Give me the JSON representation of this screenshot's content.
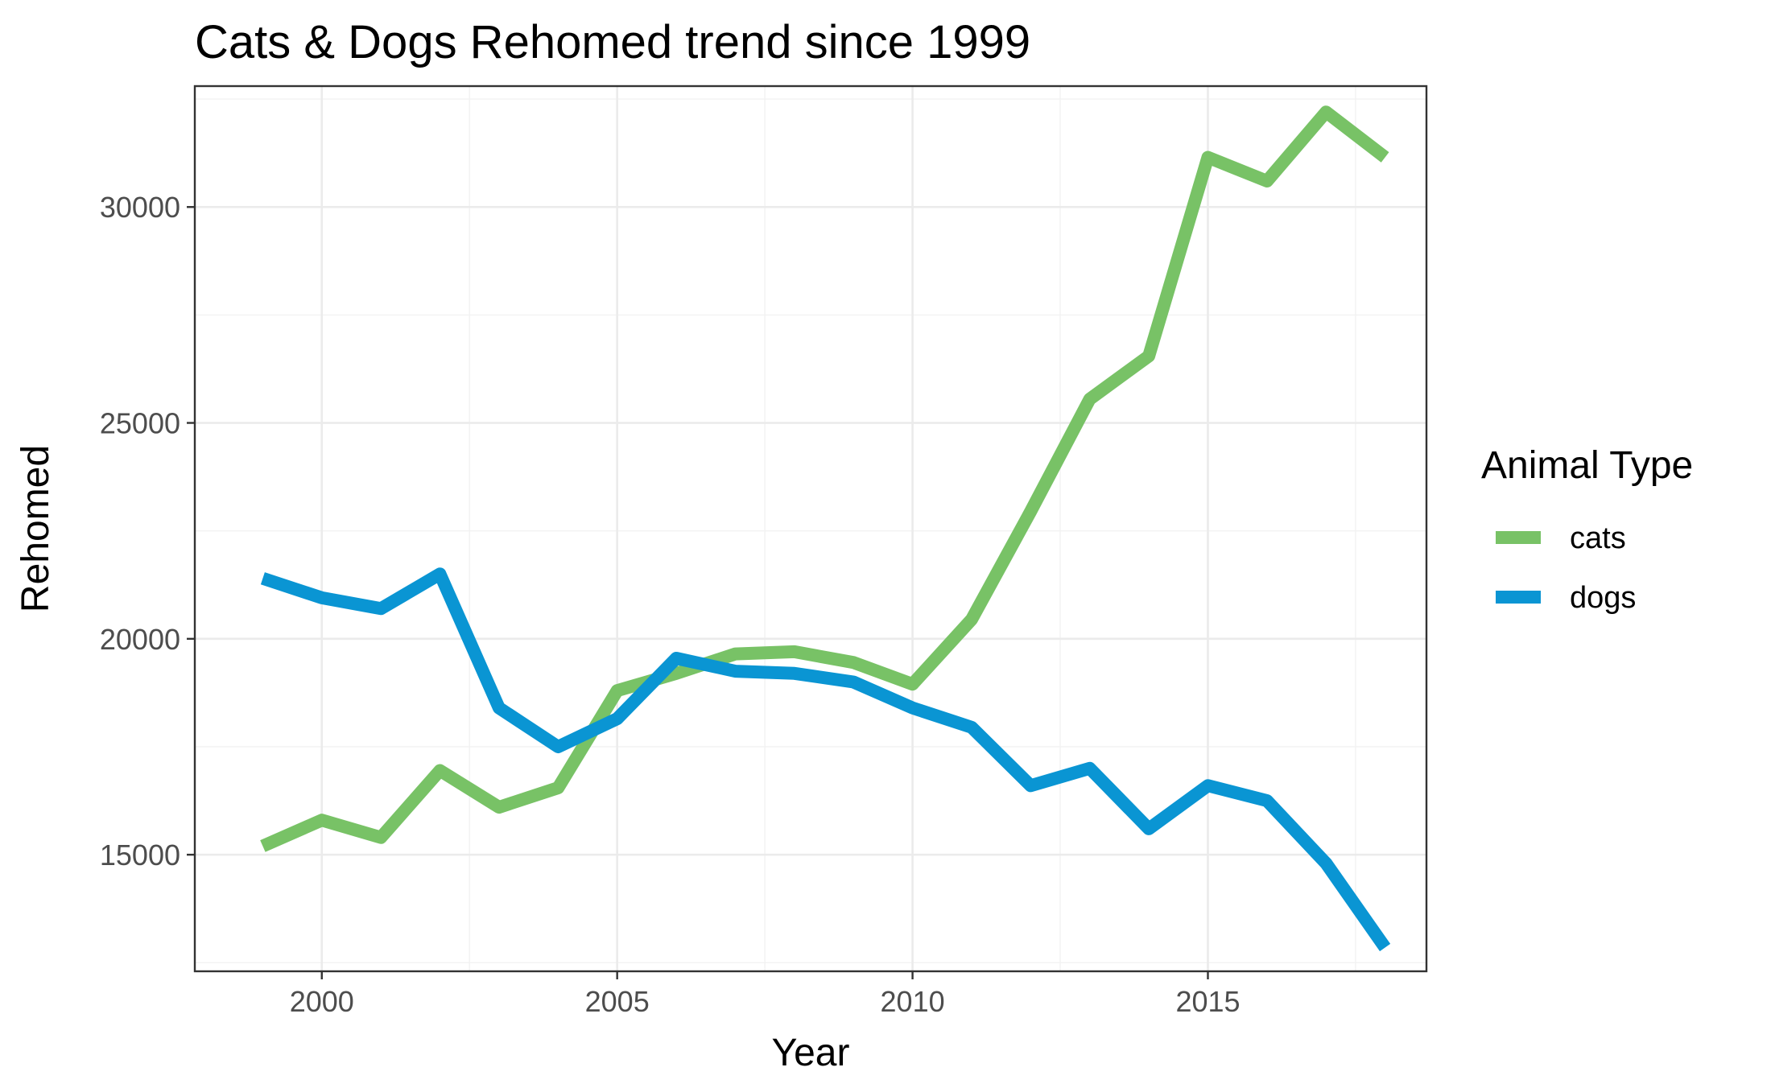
{
  "chart_data": {
    "type": "line",
    "title": "Cats & Dogs Rehomed trend since 1999",
    "xlabel": "Year",
    "ylabel": "Rehomed",
    "x": [
      1999,
      2000,
      2001,
      2002,
      2003,
      2004,
      2005,
      2006,
      2007,
      2008,
      2009,
      2010,
      2011,
      2012,
      2013,
      2014,
      2015,
      2016,
      2017,
      2018
    ],
    "series": [
      {
        "name": "cats",
        "color": "#78c266",
        "values": [
          15200,
          15800,
          15400,
          16950,
          16100,
          16550,
          18800,
          19200,
          19650,
          19700,
          19450,
          18950,
          20450,
          22950,
          25550,
          26550,
          31150,
          30600,
          32200,
          31150
        ]
      },
      {
        "name": "dogs",
        "color": "#0a95d3",
        "values": [
          21400,
          20950,
          20700,
          21500,
          18400,
          17500,
          18150,
          19550,
          19250,
          19200,
          19000,
          18400,
          17950,
          16600,
          17000,
          15600,
          16600,
          16250,
          14800,
          12850
        ]
      }
    ],
    "xlim": [
      1997.85,
      2018.7
    ],
    "ylim": [
      12300,
      32800
    ],
    "x_ticks": [
      2000,
      2005,
      2010,
      2015
    ],
    "y_ticks": [
      15000,
      20000,
      25000,
      30000
    ],
    "x_tick_labels": [
      "2000",
      "2005",
      "2010",
      "2015"
    ],
    "y_tick_labels": [
      "15000",
      "20000",
      "25000",
      "30000"
    ],
    "grid": true,
    "legend": {
      "title": "Animal Type",
      "position": "right"
    }
  }
}
